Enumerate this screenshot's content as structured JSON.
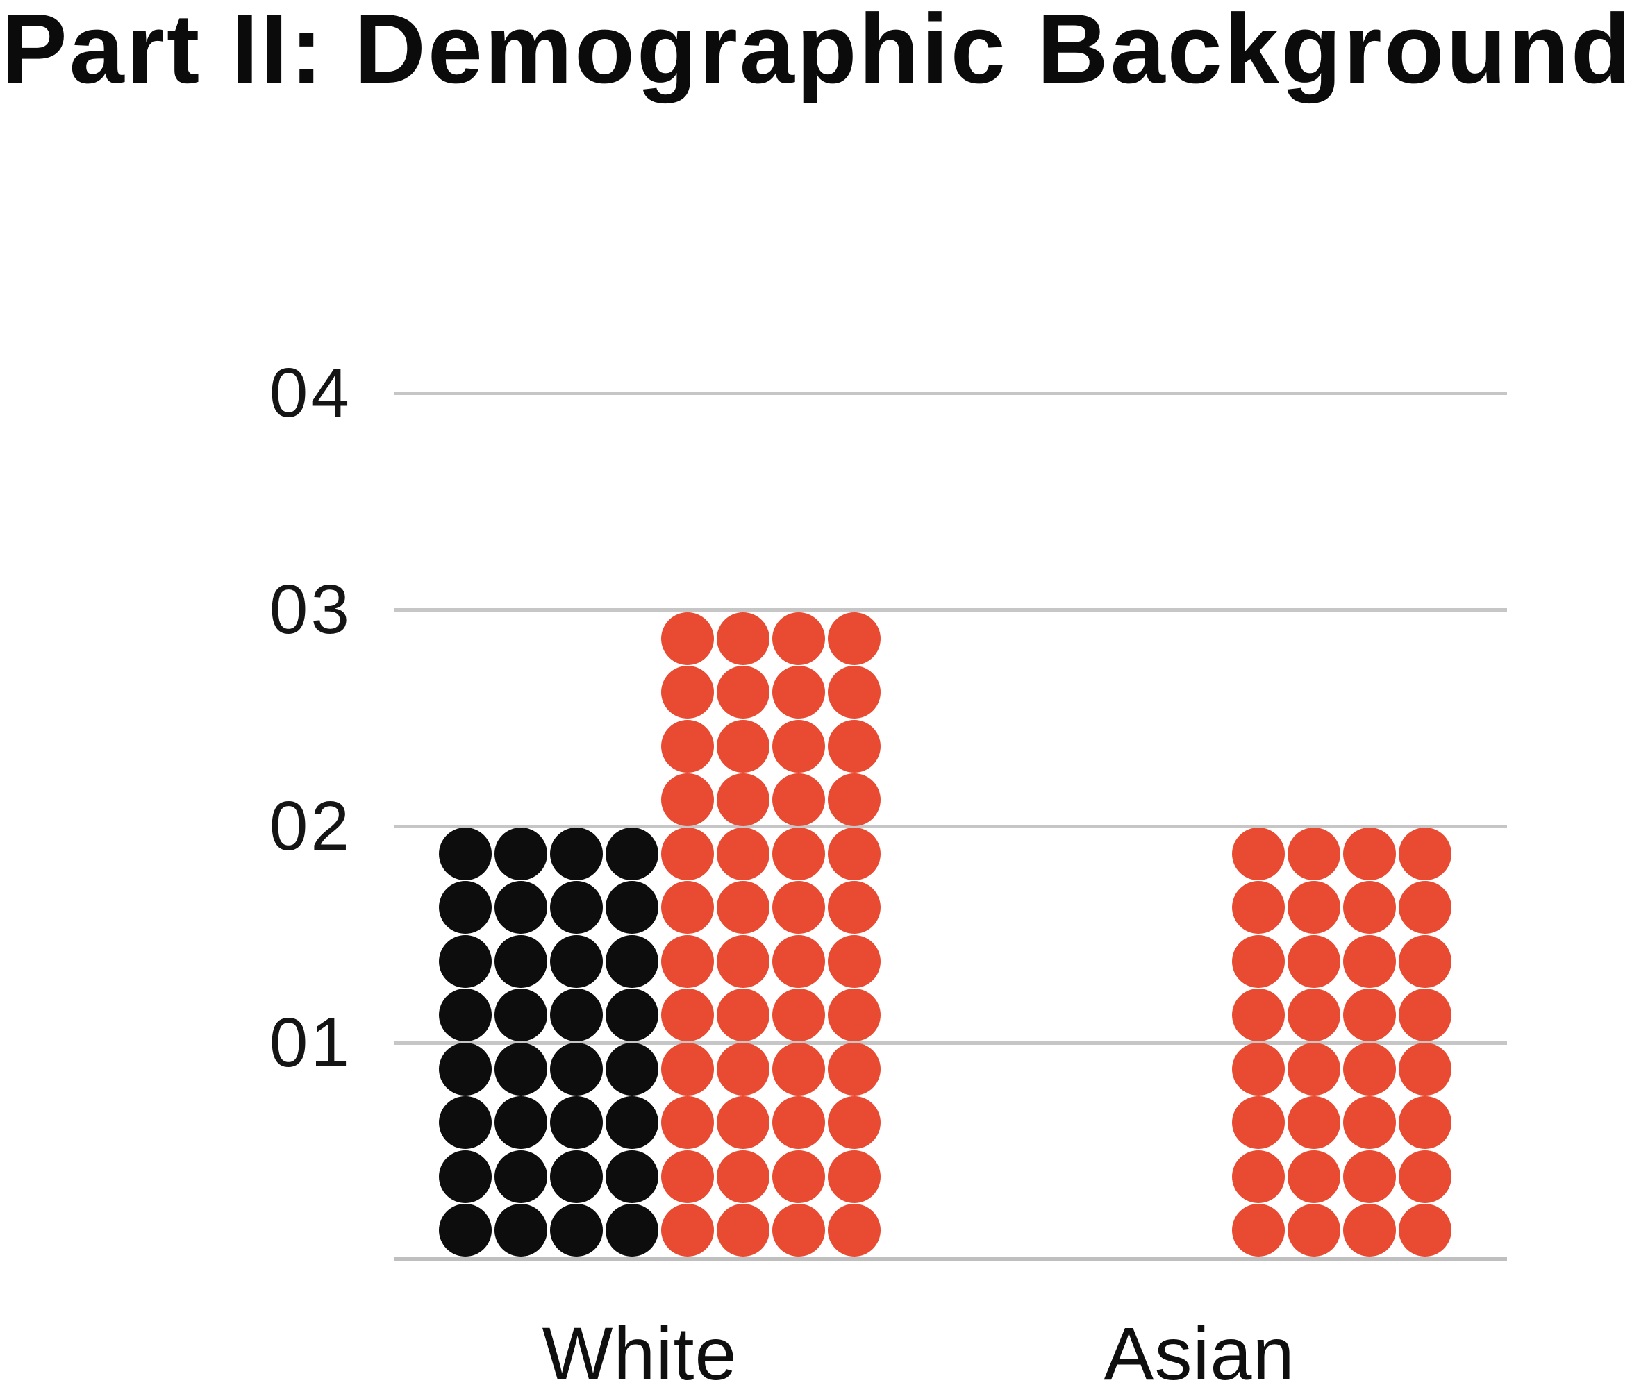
{
  "header": {
    "title": "Part II: Demographic Background"
  },
  "chart_data": {
    "type": "bar",
    "variant": "dot-matrix-pictogram",
    "title": "Part II: Demographic Background",
    "categories": [
      "White",
      "Asian"
    ],
    "series": [
      {
        "name": "black",
        "color": "#0d0d0d",
        "values": [
          2,
          0
        ]
      },
      {
        "name": "red",
        "color": "#e84b32",
        "values": [
          3,
          2
        ]
      }
    ],
    "dots_per_row": 4,
    "value_per_dot_row": 0.25,
    "dot_counts": [
      {
        "category": "White",
        "black": 32,
        "red": 48
      },
      {
        "category": "Asian",
        "black": 0,
        "red": 32
      }
    ],
    "ylim": [
      0,
      4
    ],
    "ytick_labels": [
      "04",
      "03",
      "02",
      "01"
    ],
    "grid": "horizontal",
    "legend_position": "none",
    "colors": {
      "grid": "#c6c6c6",
      "axis_text": "#151515",
      "title_text": "#0b0b0b",
      "background": "#ffffff"
    }
  }
}
